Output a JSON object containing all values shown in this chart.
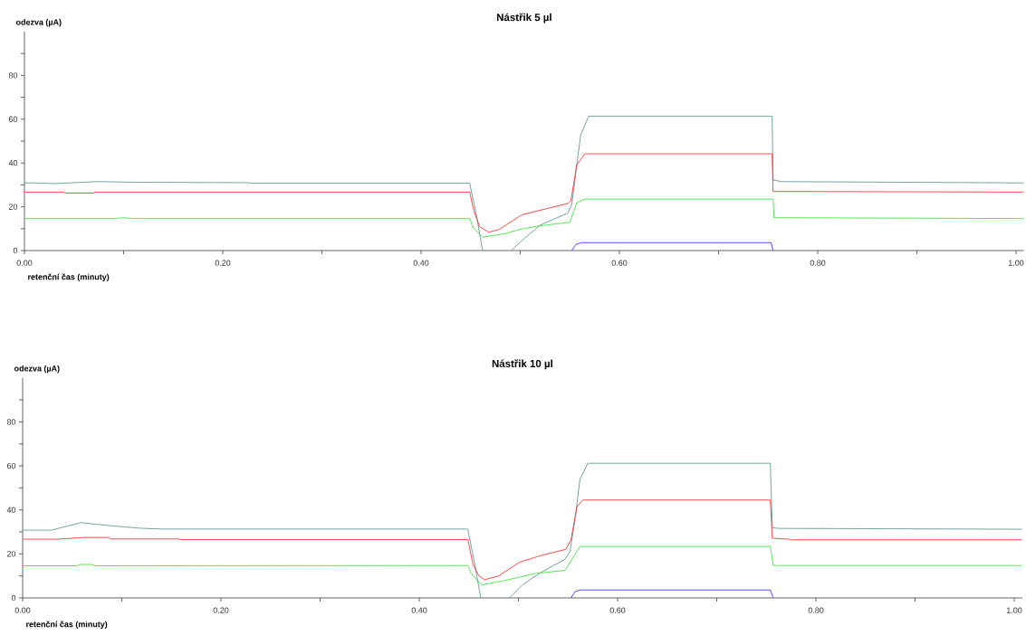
{
  "chart_data": [
    {
      "type": "line",
      "title": "Nástřik 5 µl",
      "xlabel": "retenční čas (minuty)",
      "ylabel": "odezva (µA)",
      "xlim": [
        0,
        1.008
      ],
      "ylim": [
        0,
        100
      ],
      "xticks": [
        {
          "value": 0,
          "label": "0.00"
        },
        {
          "value": 0.1,
          "label": null
        },
        {
          "value": 0.2,
          "label": "0.20"
        },
        {
          "value": 0.3,
          "label": null
        },
        {
          "value": 0.4,
          "label": "0.40"
        },
        {
          "value": 0.5,
          "label": null
        },
        {
          "value": 0.6,
          "label": "0.60"
        },
        {
          "value": 0.7,
          "label": null
        },
        {
          "value": 0.8,
          "label": "0.80"
        },
        {
          "value": 0.9,
          "label": null
        },
        {
          "value": 1.0,
          "label": "1.00"
        }
      ],
      "yticks": [
        0,
        {
          "value": 10,
          "label": null
        },
        20,
        {
          "value": 30,
          "label": null
        },
        40,
        {
          "value": 50,
          "label": null
        },
        60,
        {
          "value": 70,
          "label": null
        },
        80,
        {
          "value": 90,
          "label": null
        }
      ],
      "marker": "none",
      "line_style": "solid",
      "series": [
        {
          "color": "#508c8c",
          "x": [
            0,
            0.031,
            0.073,
            0.112,
            0.225,
            0.231,
            0.449,
            0.456,
            0.462,
            0.476,
            0.491,
            0.502,
            0.52,
            0.548,
            0.552,
            0.557,
            0.561,
            0.569,
            0.754,
            0.755,
            0.764,
            1.008
          ],
          "values": [
            31.0,
            30.6,
            31.5,
            31.2,
            31.0,
            30.8,
            30.8,
            15.7,
            0,
            null,
            0,
            4.7,
            11.6,
            17.1,
            21.2,
            39.1,
            52.9,
            61.4,
            61.4,
            32.2,
            31.5,
            30.9
          ]
        },
        {
          "color": "#ff2020",
          "x": [
            0,
            0.04,
            0.041,
            0.07,
            0.071,
            0.449,
            0.453,
            0.459,
            0.468,
            0.478,
            0.502,
            0.548,
            0.551,
            0.557,
            0.565,
            0.754,
            0.755,
            1.008
          ],
          "values": [
            26.7,
            26.7,
            26.3,
            26.3,
            26.7,
            26.7,
            18.5,
            10.9,
            8.4,
            9.5,
            16.4,
            21.5,
            22.6,
            39.1,
            44.2,
            44.2,
            27.0,
            26.7
          ]
        },
        {
          "color": "#30e030",
          "x": [
            0,
            0.09,
            0.1,
            0.11,
            0.449,
            0.453,
            0.462,
            0.484,
            0.502,
            0.52,
            0.55,
            0.557,
            0.565,
            0.755,
            0.756,
            1.008
          ],
          "values": [
            14.6,
            14.6,
            15.0,
            14.6,
            14.6,
            10.2,
            6.1,
            7.7,
            9.9,
            11.3,
            12.9,
            21.9,
            23.5,
            23.5,
            15.0,
            14.6
          ]
        },
        {
          "color": "#2020ff",
          "x": [
            0.552,
            0.556,
            0.562,
            0.753,
            0.755
          ],
          "values": [
            0,
            2.8,
            3.6,
            3.6,
            0
          ]
        }
      ]
    },
    {
      "type": "line",
      "title": "Nástřik 10 µl",
      "xlabel": "retenční čas (minuty)",
      "ylabel": "odezva (µA)",
      "xlim": [
        0,
        1.008
      ],
      "ylim": [
        0,
        100
      ],
      "xticks": [
        {
          "value": 0,
          "label": "0.00"
        },
        {
          "value": 0.1,
          "label": null
        },
        {
          "value": 0.2,
          "label": "0.20"
        },
        {
          "value": 0.3,
          "label": null
        },
        {
          "value": 0.4,
          "label": "0.40"
        },
        {
          "value": 0.5,
          "label": null
        },
        {
          "value": 0.6,
          "label": "0.60"
        },
        {
          "value": 0.7,
          "label": null
        },
        {
          "value": 0.8,
          "label": "0.80"
        },
        {
          "value": 0.9,
          "label": null
        },
        {
          "value": 1.0,
          "label": "1.00"
        }
      ],
      "yticks": [
        0,
        {
          "value": 10,
          "label": null
        },
        20,
        {
          "value": 30,
          "label": null
        },
        40,
        {
          "value": 50,
          "label": null
        },
        60,
        {
          "value": 70,
          "label": null
        },
        80,
        {
          "value": 90,
          "label": null
        }
      ],
      "marker": "none",
      "line_style": "solid",
      "series": [
        {
          "color": "#508c8c",
          "x": [
            0,
            0.029,
            0.059,
            0.087,
            0.117,
            0.14,
            0.449,
            0.457,
            0.462,
            0.476,
            0.491,
            0.504,
            0.522,
            0.547,
            0.552,
            0.558,
            0.562,
            0.57,
            0.754,
            0.756,
            0.762,
            1.008
          ],
          "values": [
            30.8,
            30.8,
            34.2,
            32.9,
            31.7,
            31.3,
            31.3,
            12.7,
            0,
            null,
            0,
            5.9,
            11.4,
            17.6,
            21.0,
            38.8,
            53.9,
            61.2,
            61.2,
            31.9,
            31.6,
            31.2
          ]
        },
        {
          "color": "#ff2020",
          "x": [
            0,
            0.036,
            0.062,
            0.086,
            0.089,
            0.157,
            0.16,
            0.449,
            0.454,
            0.46,
            0.466,
            0.48,
            0.501,
            0.523,
            0.548,
            0.553,
            0.559,
            0.565,
            0.754,
            0.756,
            0.773,
            0.775,
            1.008
          ],
          "values": [
            26.7,
            26.7,
            27.5,
            27.5,
            26.8,
            26.8,
            26.5,
            26.5,
            15.5,
            10.0,
            8.3,
            10.0,
            16.2,
            19.3,
            22.1,
            26.4,
            41.5,
            44.5,
            44.5,
            27.1,
            26.7,
            26.4,
            26.4
          ]
        },
        {
          "color": "#30e030",
          "x": [
            0,
            0.055,
            0.058,
            0.07,
            0.073,
            0.449,
            0.452,
            0.463,
            0.486,
            0.517,
            0.547,
            0.553,
            0.562,
            0.754,
            0.757,
            1.008
          ],
          "values": [
            14.6,
            14.6,
            15.2,
            15.2,
            14.6,
            14.7,
            11.4,
            5.9,
            7.9,
            11.1,
            12.5,
            16.9,
            23.4,
            23.4,
            14.7,
            14.7
          ]
        },
        {
          "color": "#2020ff",
          "x": [
            0.553,
            0.557,
            0.562,
            0.754,
            0.757
          ],
          "values": [
            0,
            2.8,
            3.6,
            3.6,
            0
          ]
        }
      ]
    }
  ]
}
